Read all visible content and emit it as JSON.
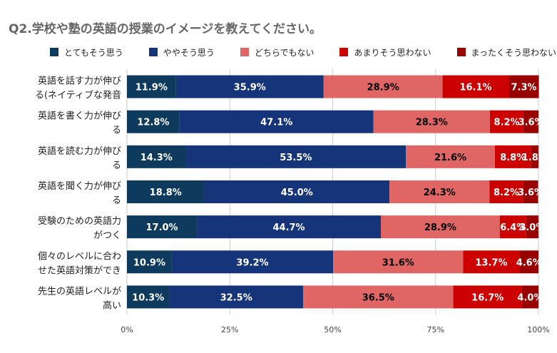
{
  "title": "Q2.学校や塾の英語の授業のイメージを教えてください。",
  "chart_data": {
    "type": "bar",
    "orientation": "horizontal",
    "stacked": "percent",
    "categories": [
      [
        "英語を話す力が伸び",
        "る(ネイティブな発音"
      ],
      [
        "英語を書く力が伸び",
        "る"
      ],
      [
        "英語を読む力が伸び",
        "る"
      ],
      [
        "英語を聞く力が伸び",
        "る"
      ],
      [
        "受験のための英語力",
        "がつく"
      ],
      [
        "個々のレベルに合わ",
        "せた英語対策ができ"
      ],
      [
        "先生の英語レベルが",
        "高い"
      ]
    ],
    "series": [
      {
        "name": "とてもそう思う",
        "color": "#0e3a5d",
        "values": [
          11.9,
          12.8,
          14.3,
          18.8,
          17.0,
          10.9,
          10.3
        ]
      },
      {
        "name": "ややそう思う",
        "color": "#16347a",
        "values": [
          35.9,
          47.1,
          53.5,
          45.0,
          44.7,
          39.2,
          32.5
        ]
      },
      {
        "name": "どちらでもない",
        "color": "#e06666",
        "values": [
          28.9,
          28.3,
          21.6,
          24.3,
          28.9,
          31.6,
          36.5
        ]
      },
      {
        "name": "あまりそう思わない",
        "color": "#cc0000",
        "values": [
          16.1,
          8.2,
          8.8,
          8.2,
          6.4,
          13.7,
          16.7
        ]
      },
      {
        "name": "まったくそう思わない",
        "color": "#990000",
        "values": [
          7.3,
          3.6,
          1.8,
          3.6,
          3.0,
          4.6,
          4.0
        ]
      }
    ],
    "data_labels": [
      [
        "11.9%",
        "12.8%",
        "14.3%",
        "18.8%",
        "17.0%",
        "10.9%",
        "10.3%"
      ],
      [
        "35.9%",
        "47.1%",
        "53.5%",
        "45.0%",
        "44.7%",
        "39.2%",
        "32.5%"
      ],
      [
        "28.9%",
        "28.3%",
        "21.6%",
        "24.3%",
        "28.9%",
        "31.6%",
        "36.5%"
      ],
      [
        "16.1%",
        "8.2%",
        "8.8%",
        "8.2%",
        "6.4%",
        "13.7%",
        "16.7%"
      ],
      [
        "7.3%",
        "3.6%",
        "1.8%",
        "3.6%",
        "3.0%",
        "4.6%",
        "4.0%"
      ]
    ],
    "label_colors": [
      "#ffffff",
      "#ffffff",
      "#000000",
      "#ffffff",
      "#ffffff"
    ],
    "x_ticks": [
      "0%",
      "25%",
      "50%",
      "75%",
      "100%"
    ],
    "xlim": [
      0,
      100
    ],
    "grid": true,
    "legend_position": "top"
  }
}
